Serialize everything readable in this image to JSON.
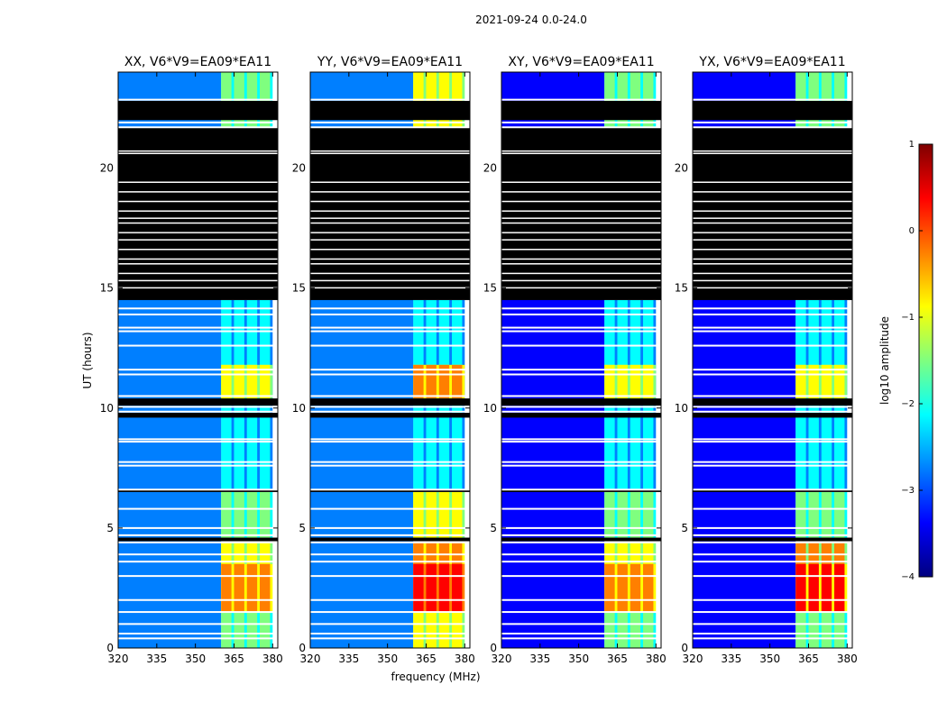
{
  "figure_title": "2021-09-24 0.0-24.0",
  "chart_data": {
    "type": "heatmap",
    "title": "2021-09-24 0.0-24.0",
    "xlabel": "frequency (MHz)",
    "ylabel": "UT (hours)",
    "xlim": [
      320,
      382
    ],
    "ylim": [
      0,
      24
    ],
    "xticks": [
      320,
      335,
      350,
      365,
      380
    ],
    "yticks": [
      0,
      5,
      10,
      15,
      20
    ],
    "panels": [
      {
        "title": "XX, V6*V9=EA09*EA11",
        "pol": "XX"
      },
      {
        "title": "YY, V6*V9=EA09*EA11",
        "pol": "YY"
      },
      {
        "title": "XY, V6*V9=EA09*EA11",
        "pol": "XY"
      },
      {
        "title": "YX, V6*V9=EA09*EA11",
        "pol": "YX"
      }
    ],
    "colorbar": {
      "label": "log10 amplitude",
      "range": [
        -4,
        1
      ],
      "ticks": [
        "1",
        "0",
        "−1",
        "−2",
        "−3",
        "−4"
      ],
      "colormap": [
        "#00007f",
        "#0000ff",
        "#007fff",
        "#00ffff",
        "#7fff7f",
        "#ffff00",
        "#ff7f00",
        "#ff0000",
        "#7f0000"
      ]
    },
    "flagged_color": "#000000",
    "rfi_band_mhz": [
      360,
      380
    ],
    "rfi_channels_mhz": [
      [
        360,
        364
      ],
      [
        365,
        369
      ],
      [
        370,
        374
      ],
      [
        375,
        379
      ]
    ],
    "flagged_ut_ranges": [
      [
        14.5,
        21.7
      ],
      [
        22.0,
        22.8
      ],
      [
        10.1,
        10.4
      ],
      [
        9.6,
        9.8
      ],
      [
        4.45,
        4.6
      ],
      [
        6.5,
        6.6
      ]
    ],
    "gap_ut_hours": [
      0.4,
      0.6,
      1.0,
      1.5,
      2.0,
      3.0,
      3.6,
      3.9,
      4.4,
      4.7,
      5.0,
      5.8,
      6.6,
      7.6,
      7.75,
      8.6,
      8.7,
      9.85,
      10.05,
      10.5,
      11.4,
      11.6,
      12.6,
      13.2,
      13.35,
      13.9,
      14.15,
      21.7,
      21.9,
      22.85
    ],
    "amplitude_regions": [
      {
        "ut": [
          1.5,
          3.5
        ],
        "mhz": [
          360,
          380
        ],
        "log10_amp": {
          "XX": -0.4,
          "YY": 0.3,
          "XY": -0.2,
          "YX": 0.1
        }
      },
      {
        "ut": [
          3.5,
          4.4
        ],
        "mhz": [
          360,
          380
        ],
        "log10_amp": {
          "XX": -0.8,
          "YY": -0.4,
          "XY": -0.8,
          "YX": -0.5
        }
      },
      {
        "ut": [
          0.0,
          1.5
        ],
        "mhz": [
          360,
          380
        ],
        "log10_amp": {
          "XX": -1.2,
          "YY": -1.0,
          "XY": -1.3,
          "YX": -1.2
        }
      },
      {
        "ut": [
          4.6,
          6.5
        ],
        "mhz": [
          360,
          380
        ],
        "log10_amp": {
          "XX": -1.2,
          "YY": -1.0,
          "XY": -1.3,
          "YX": -1.3
        }
      },
      {
        "ut": [
          10.4,
          11.8
        ],
        "mhz": [
          360,
          380
        ],
        "log10_amp": {
          "XX": -0.7,
          "YY": -0.2,
          "XY": -1.0,
          "YX": -1.0
        }
      },
      {
        "ut": [
          21.3,
          24.0
        ],
        "mhz": [
          360,
          380
        ],
        "log10_amp": {
          "XX": -1.2,
          "YY": -1.0,
          "XY": -1.3,
          "YX": -1.3
        }
      },
      {
        "ut": [
          6.6,
          14.5
        ],
        "mhz": [
          360,
          380
        ],
        "log10_amp": {
          "XX": -2.2,
          "YY": -2.0,
          "XY": -2.3,
          "YX": -2.3
        }
      },
      {
        "ut": [
          0.0,
          24.0
        ],
        "mhz": [
          320,
          360
        ],
        "log10_amp": {
          "XX": -3.0,
          "YY": -2.9,
          "XY": -3.1,
          "YX": -3.1
        }
      }
    ]
  }
}
